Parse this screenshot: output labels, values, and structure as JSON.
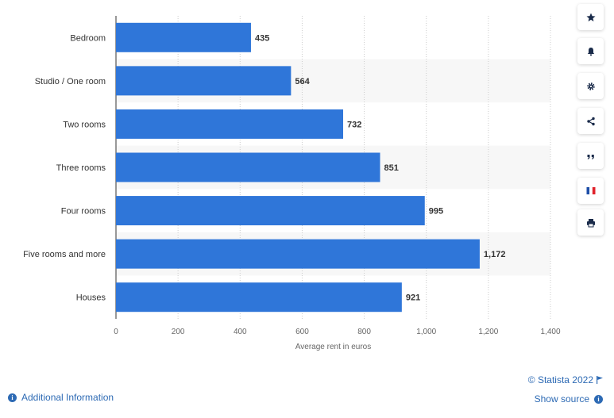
{
  "chart_data": {
    "type": "bar",
    "orientation": "horizontal",
    "categories": [
      "Bedroom",
      "Studio / One room",
      "Two rooms",
      "Three rooms",
      "Four rooms",
      "Five rooms and more",
      "Houses"
    ],
    "values": [
      435,
      564,
      732,
      851,
      995,
      1172,
      921
    ],
    "value_labels": [
      "435",
      "564",
      "732",
      "851",
      "995",
      "1,172",
      "921"
    ],
    "xlabel": "Average rent in euros",
    "xlim": [
      0,
      1400
    ],
    "xticks": [
      0,
      200,
      400,
      600,
      800,
      1000,
      1200,
      1400
    ],
    "xtick_labels": [
      "0",
      "200",
      "400",
      "600",
      "800",
      "1,000",
      "1,200",
      "1,400"
    ],
    "bar_color": "#2f76d9",
    "grid": true,
    "alternate_row_shading": "#f7f7f7"
  },
  "sidebar": {
    "buttons": [
      {
        "name": "favorite-button",
        "icon": "star-icon"
      },
      {
        "name": "notification-button",
        "icon": "bell-icon"
      },
      {
        "name": "settings-button",
        "icon": "gear-icon"
      },
      {
        "name": "share-button",
        "icon": "share-icon"
      },
      {
        "name": "cite-button",
        "icon": "quote-icon"
      },
      {
        "name": "language-button",
        "icon": "french-flag-icon"
      },
      {
        "name": "print-button",
        "icon": "printer-icon"
      }
    ]
  },
  "footer": {
    "additional_info": "Additional Information",
    "copyright": "© Statista 2022",
    "show_source": "Show source"
  }
}
